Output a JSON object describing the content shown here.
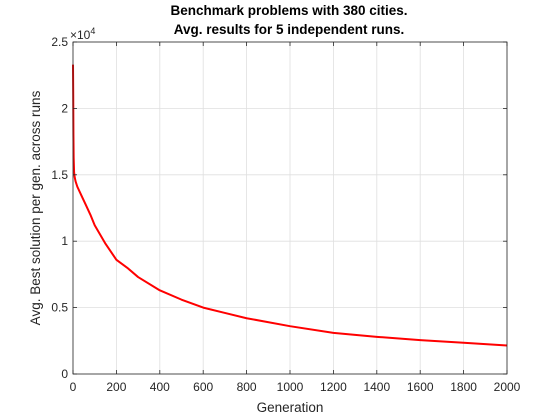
{
  "chart_data": {
    "type": "line",
    "title": [
      "Benchmark problems with 380 cities.",
      "Avg. results for 5 independent runs."
    ],
    "xlabel": "Generation",
    "ylabel": "Avg. Best solution per gen. across runs",
    "xlim": [
      0,
      2000
    ],
    "ylim": [
      0,
      25000
    ],
    "xticks": [
      0,
      200,
      400,
      600,
      800,
      1000,
      1200,
      1400,
      1600,
      1800,
      2000
    ],
    "xtick_labels": [
      "0",
      "200",
      "400",
      "600",
      "800",
      "1000",
      "1200",
      "1400",
      "1600",
      "1800",
      "2000"
    ],
    "yticks": [
      0,
      5000,
      10000,
      15000,
      20000,
      25000
    ],
    "ytick_labels": [
      "0",
      "0.5",
      "1",
      "1.5",
      "2",
      "2.5"
    ],
    "y_multiplier": "×10",
    "y_multiplier_exponent": "4",
    "grid": true,
    "series": [
      {
        "color": "#ff0000",
        "x": [
          0,
          1,
          2,
          3,
          5,
          8,
          12,
          20,
          40,
          60,
          80,
          100,
          150,
          200,
          250,
          300,
          400,
          500,
          600,
          700,
          800,
          1000,
          1200,
          1400,
          1600,
          1800,
          2000
        ],
        "y": [
          23300,
          21000,
          18000,
          16300,
          15200,
          14800,
          14500,
          14100,
          13400,
          12700,
          12000,
          11200,
          9800,
          8600,
          8000,
          7300,
          6300,
          5600,
          5000,
          4600,
          4200,
          3600,
          3100,
          2800,
          2550,
          2350,
          2150
        ]
      }
    ]
  }
}
